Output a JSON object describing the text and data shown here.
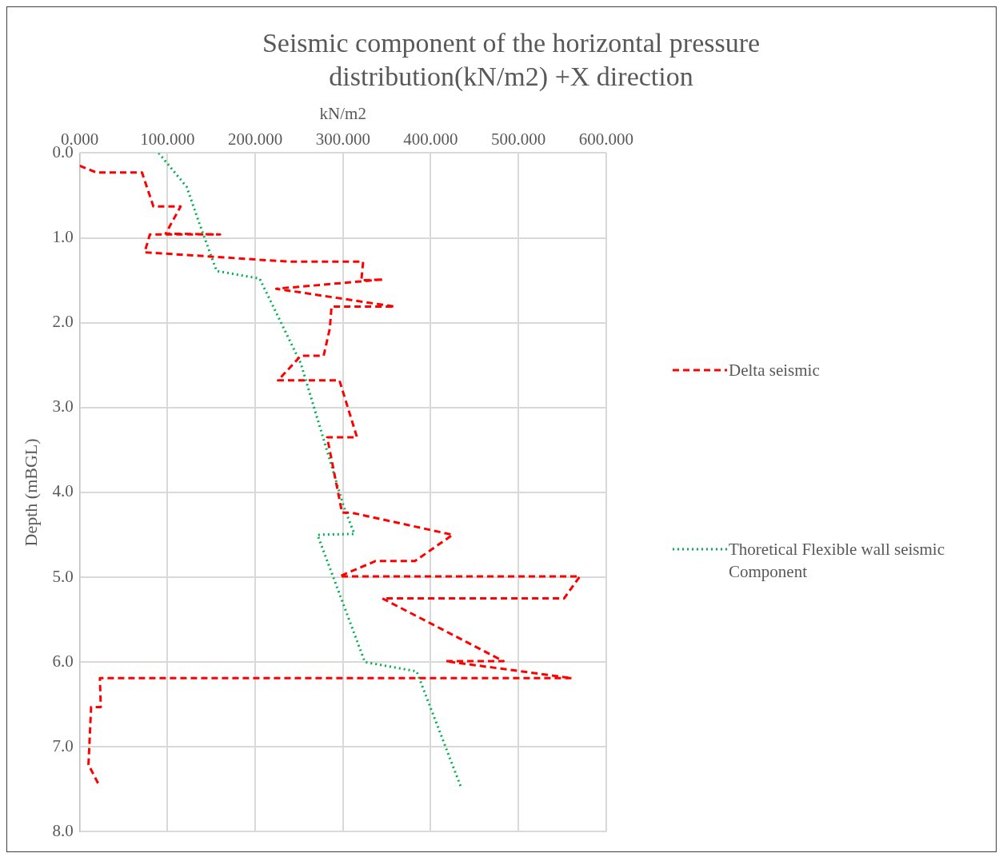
{
  "chart_data": {
    "type": "line",
    "title": "Seismic component of the horizontal pressure distribution(kN/m2) +X direction",
    "xlabel": "kN/m2",
    "ylabel": "Depth (mBGL)",
    "xlim": [
      0,
      600
    ],
    "xticks": [
      {
        "value": 0,
        "label": "0.000"
      },
      {
        "value": 100,
        "label": "100.000"
      },
      {
        "value": 200,
        "label": "200.000"
      },
      {
        "value": 300,
        "label": "300.000"
      },
      {
        "value": 400,
        "label": "400.000"
      },
      {
        "value": 500,
        "label": "500.000"
      },
      {
        "value": 600,
        "label": "600.000"
      }
    ],
    "ylim": [
      8,
      0
    ],
    "yticks": [
      {
        "value": 0,
        "label": "0.0"
      },
      {
        "value": 1,
        "label": "1.0"
      },
      {
        "value": 2,
        "label": "2.0"
      },
      {
        "value": 3,
        "label": "3.0"
      },
      {
        "value": 4,
        "label": "4.0"
      },
      {
        "value": 5,
        "label": "5.0"
      },
      {
        "value": 6,
        "label": "6.0"
      },
      {
        "value": 7,
        "label": "7.0"
      },
      {
        "value": 8,
        "label": "8.0"
      }
    ],
    "grid": true,
    "legend": "right",
    "marker": "none",
    "series": [
      {
        "name": "Delta seismic",
        "color": "#ff0000",
        "line_style": "dashed",
        "x": [
          0,
          19,
          71,
          84,
          115,
          98,
          160,
          80,
          74,
          238,
          323,
          321,
          346,
          224,
          359,
          287,
          285,
          278,
          252,
          226,
          296,
          316,
          282,
          299,
          310,
          425,
          382,
          337,
          296,
          570,
          552,
          345,
          483,
          417,
          561,
          23,
          24,
          13,
          10,
          23
        ],
        "values": [
          0.15,
          0.23,
          0.23,
          0.63,
          0.63,
          0.95,
          0.96,
          0.96,
          1.17,
          1.28,
          1.28,
          1.5,
          1.49,
          1.6,
          1.81,
          1.81,
          2.07,
          2.39,
          2.39,
          2.68,
          2.68,
          3.35,
          3.35,
          4.24,
          4.24,
          4.5,
          4.81,
          4.81,
          4.99,
          4.99,
          5.25,
          5.25,
          5.99,
          5.99,
          6.19,
          6.19,
          6.53,
          6.53,
          7.21,
          7.47
        ]
      },
      {
        "name": "Thoretical Flexible wall seismic Component",
        "color": "#00b050",
        "line_style": "dotted",
        "x": [
          90,
          122,
          136,
          156,
          205,
          214,
          252,
          301,
          313,
          271,
          325,
          384,
          434
        ],
        "values": [
          0,
          0.4,
          0.82,
          1.39,
          1.48,
          1.67,
          2.48,
          4.17,
          4.49,
          4.5,
          6.0,
          6.11,
          7.46
        ]
      }
    ]
  }
}
